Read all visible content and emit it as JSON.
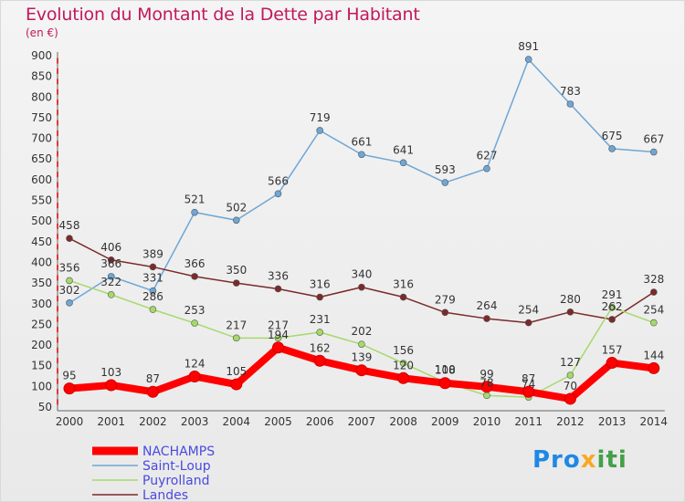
{
  "header": {
    "title": "Evolution du Montant de la Dette par Habitant",
    "unit": "(en €)"
  },
  "logo": {
    "text": "Proxiti"
  },
  "colors": {
    "NACHAMPS": "#ff0000",
    "Saint-Loup": "#6ea6d6",
    "Puyrolland": "#a6d96a",
    "Landes": "#7b2a2a",
    "title": "#c2185b"
  },
  "chart_data": {
    "type": "line",
    "title": "Evolution du Montant de la Dette par Habitant",
    "ylabel": "(en €)",
    "xlabel": "",
    "ylim": [
      50,
      900
    ],
    "yticks": [
      50,
      100,
      150,
      200,
      250,
      300,
      350,
      400,
      450,
      500,
      550,
      600,
      650,
      700,
      750,
      800,
      850,
      900
    ],
    "categories": [
      "2000",
      "2001",
      "2002",
      "2003",
      "2004",
      "2005",
      "2006",
      "2007",
      "2008",
      "2009",
      "2010",
      "2011",
      "2012",
      "2013",
      "2014"
    ],
    "legend_position": "bottom-left",
    "grid": false,
    "series": [
      {
        "name": "NACHAMPS",
        "values": [
          95,
          103,
          87,
          124,
          105,
          194,
          162,
          139,
          120,
          108,
          99,
          87,
          70,
          157,
          144
        ]
      },
      {
        "name": "Saint-Loup",
        "values": [
          302,
          366,
          331,
          521,
          502,
          566,
          719,
          661,
          641,
          593,
          627,
          891,
          783,
          675,
          667
        ]
      },
      {
        "name": "Puyrolland",
        "values": [
          356,
          322,
          286,
          253,
          217,
          217,
          231,
          202,
          156,
          110,
          78,
          74,
          127,
          291,
          254
        ]
      },
      {
        "name": "Landes",
        "values": [
          458,
          406,
          389,
          366,
          350,
          336,
          316,
          340,
          316,
          279,
          264,
          254,
          280,
          262,
          328
        ]
      }
    ]
  }
}
